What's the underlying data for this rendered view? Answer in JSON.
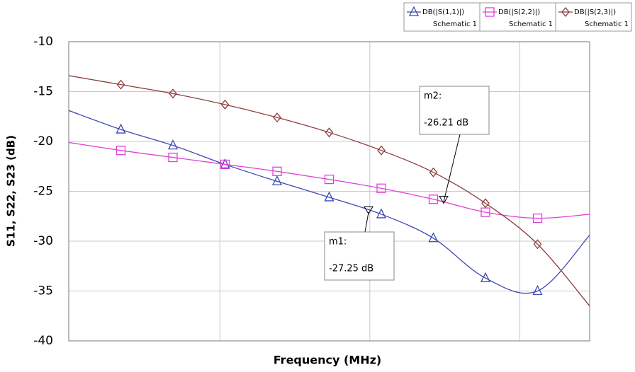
{
  "chart_data": {
    "type": "line",
    "x_label": "Frequency (MHz)",
    "y_label": "S11, S22, S23 (dB)",
    "categories": [
      null,
      null,
      null,
      null,
      null,
      null,
      null,
      null,
      null,
      null,
      null
    ],
    "series": [
      {
        "name": "DB(|S(1,1)|)",
        "source": "Schematic 1",
        "color": "#3c48b4",
        "marker": "triangle",
        "values": [
          -16.9,
          -18.8,
          -20.4,
          -22.3,
          -24.0,
          -25.6,
          -27.3,
          -29.7,
          -33.7,
          -35.0,
          -29.4
        ]
      },
      {
        "name": "DB(|S(2,2)|)",
        "source": "Schematic 1",
        "color": "#e040d8",
        "marker": "square",
        "values": [
          -20.1,
          -20.9,
          -21.6,
          -22.3,
          -23.0,
          -23.8,
          -24.7,
          -25.8,
          -27.1,
          -27.7,
          -27.3
        ]
      },
      {
        "name": "DB(|S(2,3)|)",
        "source": "Schematic 1",
        "color": "#8c3c3c",
        "marker": "diamond",
        "values": [
          -13.4,
          -14.3,
          -15.2,
          -16.3,
          -17.6,
          -19.1,
          -20.9,
          -23.1,
          -26.2,
          -30.3,
          -36.5
        ]
      }
    ],
    "annotations": [
      {
        "name": "m1:",
        "value": -27.25,
        "label": "-27.25 dB"
      },
      {
        "name": "m2:",
        "value": -26.21,
        "label": "-26.21 dB"
      }
    ],
    "ylim": [
      -40,
      -10
    ],
    "yticks": [
      -10,
      -15,
      -20,
      -25,
      -30,
      -35,
      -40
    ],
    "grid": true,
    "legend": "top-right"
  }
}
